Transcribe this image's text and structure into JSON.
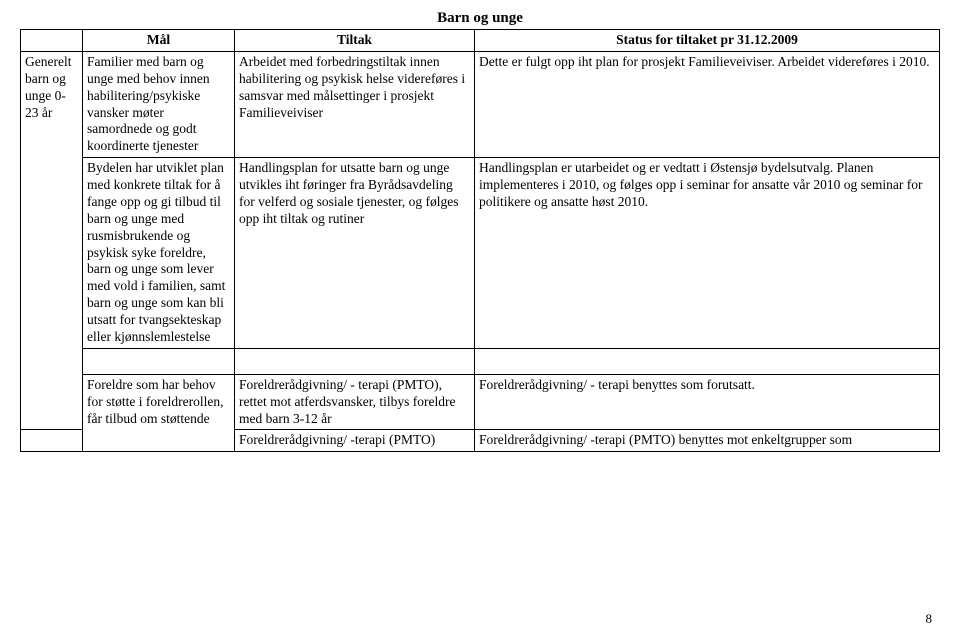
{
  "title": "Barn og unge",
  "headers": {
    "col1": "",
    "col2": "Mål",
    "col3": "Tiltak",
    "col4": "Status for tiltaket pr 31.12.2009"
  },
  "rows": [
    {
      "c1": "Generelt barn og unge 0-23 år",
      "c2": "Familier med barn og unge med behov innen habilitering/psykiske vansker møter samordnede og godt koordinerte tjenester",
      "c3": "Arbeidet med forbedringstiltak innen habilitering og psykisk helse videreføres i samsvar med målsettinger i prosjekt Familieveiviser",
      "c4": "Dette er fulgt opp iht plan for prosjekt Familieveiviser. Arbeidet videreføres i 2010."
    },
    {
      "c2": "Bydelen har utviklet plan med konkrete tiltak for å fange opp og gi tilbud til barn og unge med rusmisbrukende og psykisk syke foreldre, barn og unge som lever med vold i familien, samt barn og unge som kan bli utsatt for tvangsekteskap eller kjønnslemlestelse",
      "c3": "Handlingsplan for utsatte barn og unge utvikles iht føringer fra Byrådsavdeling for velferd og sosiale tjenester, og følges opp iht tiltak og rutiner",
      "c4": "Handlingsplan er utarbeidet og er vedtatt i Østensjø bydelsutvalg. Planen implementeres i 2010, og følges opp i seminar for ansatte vår 2010 og seminar for politikere og ansatte høst 2010."
    }
  ],
  "row3": {
    "c2": "Foreldre som har behov for støtte i foreldrerollen, får tilbud om støttende",
    "c3a": "Foreldrerådgivning/ - terapi (PMTO), rettet mot atferdsvansker, tilbys foreldre med barn 3-12 år",
    "c3b": "Foreldrerådgivning/ -terapi (PMTO)",
    "c4a": "Foreldrerådgivning/ - terapi benyttes som forutsatt.",
    "c4b": "Foreldrerådgivning/ -terapi (PMTO) benyttes mot enkeltgrupper som"
  },
  "pageNumber": "8",
  "colors": {
    "background": "#ffffff",
    "text": "#000000",
    "border": "#000000"
  },
  "typography": {
    "fontFamily": "Times New Roman",
    "bodyFontSize": 13.5,
    "titleFontSize": 15
  }
}
